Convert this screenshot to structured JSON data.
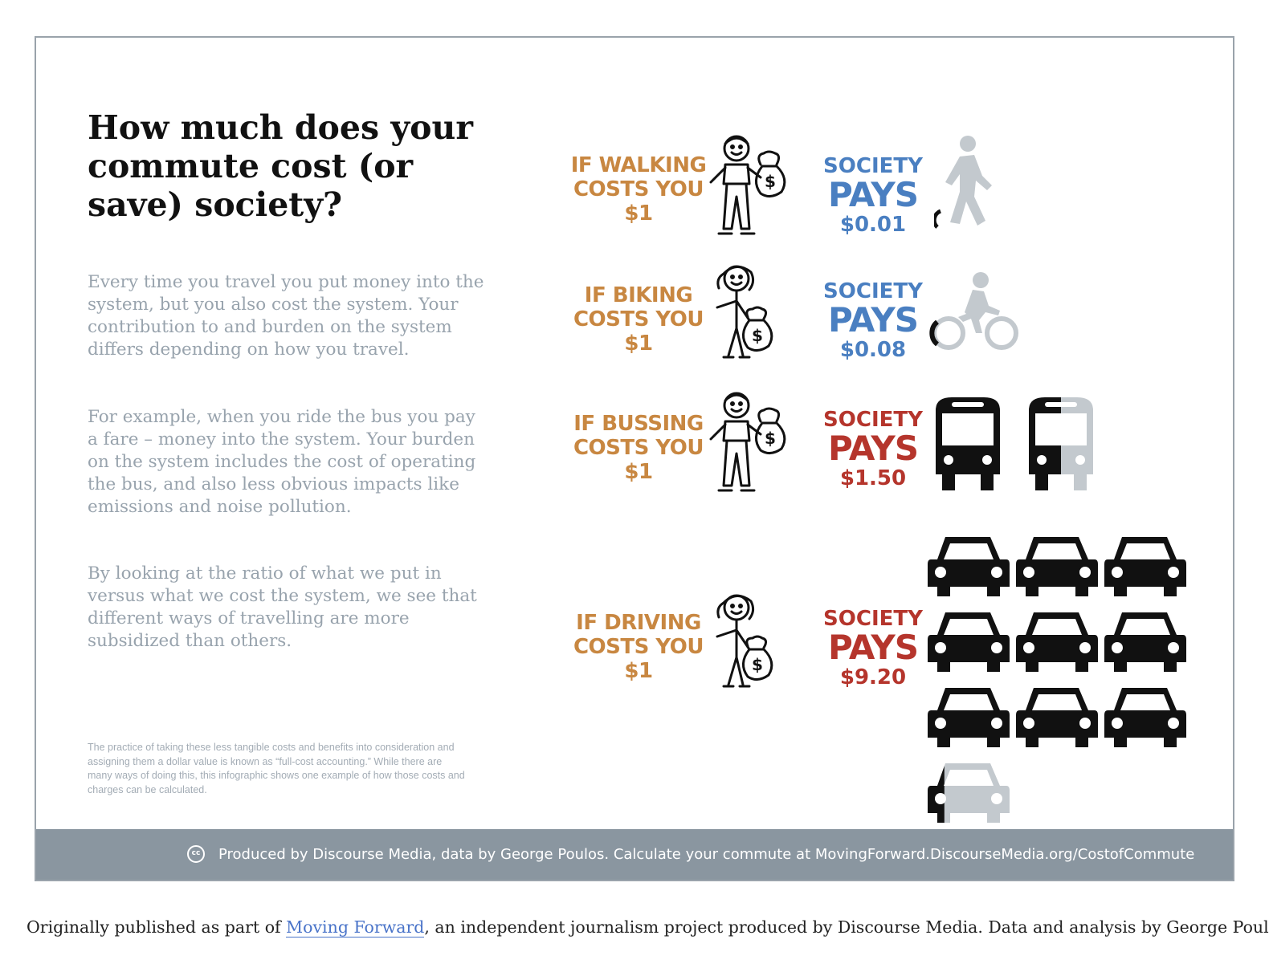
{
  "infographic": {
    "title": "How much does your commute cost (or save) society?",
    "paragraphs": [
      "Every time you travel you put money into the system, but you also cost the system. Your contribution to and burden on the system differs depending on how you travel.",
      "For example, when you ride the bus you pay a fare – money into the system. Your burden on the system includes the cost of operating the bus, and also less obvious impacts like emissions and noise pollution.",
      "By looking at the ratio of what we put in versus what we cost the system, we see that different ways of travelling are more subsidized than others."
    ],
    "fineprint": "The practice of taking these less tangible costs and benefits into consideration and assigning them a dollar value is known as “full-cost accounting.” While there are many ways of doing this, this infographic shows one example of how those costs and charges can be calculated.",
    "colors": {
      "cost_orange": "#c88741",
      "subsidy_blue": "#4a7fc1",
      "subsidy_red": "#b5352c",
      "icon_black": "#111111",
      "icon_grey": "#c3c9ce",
      "footer_bar": "#8a96a0"
    },
    "modes": [
      {
        "mode": "walking",
        "cost_line1": "IF WALKING",
        "cost_line2": "COSTS YOU",
        "cost_amount": "$1",
        "pays_line1": "SOCIETY",
        "pays_line2": "PAYS",
        "pays_amount": "$0.01",
        "pays_value": 0.01,
        "pays_color": "#4a7fc1",
        "icon": "walking-person-icon"
      },
      {
        "mode": "biking",
        "cost_line1": "IF BIKING",
        "cost_line2": "COSTS YOU",
        "cost_amount": "$1",
        "pays_line1": "SOCIETY",
        "pays_line2": "PAYS",
        "pays_amount": "$0.08",
        "pays_value": 0.08,
        "pays_color": "#4a7fc1",
        "icon": "bicycle-icon"
      },
      {
        "mode": "bussing",
        "cost_line1": "IF BUSSING",
        "cost_line2": "COSTS YOU",
        "cost_amount": "$1",
        "pays_line1": "SOCIETY",
        "pays_line2": "PAYS",
        "pays_amount": "$1.50",
        "pays_value": 1.5,
        "pays_color": "#b5352c",
        "icon": "bus-icon"
      },
      {
        "mode": "driving",
        "cost_line1": "IF DRIVING",
        "cost_line2": "COSTS YOU",
        "cost_amount": "$1",
        "pays_line1": "SOCIETY",
        "pays_line2": "PAYS",
        "pays_amount": "$9.20",
        "pays_value": 9.2,
        "pays_color": "#b5352c",
        "icon": "car-icon"
      }
    ],
    "footer": {
      "cc_label": "cc",
      "text": "Produced by Discourse Media, data by George Poulos.  Calculate your commute at MovingForward.DiscourseMedia.org/CostofCommute"
    }
  },
  "caption": {
    "before": "Originally published as part of ",
    "link": "Moving Forward",
    "after": ", an independent journalism project produced by Discourse Media. Data and analysis by George Poulos."
  }
}
